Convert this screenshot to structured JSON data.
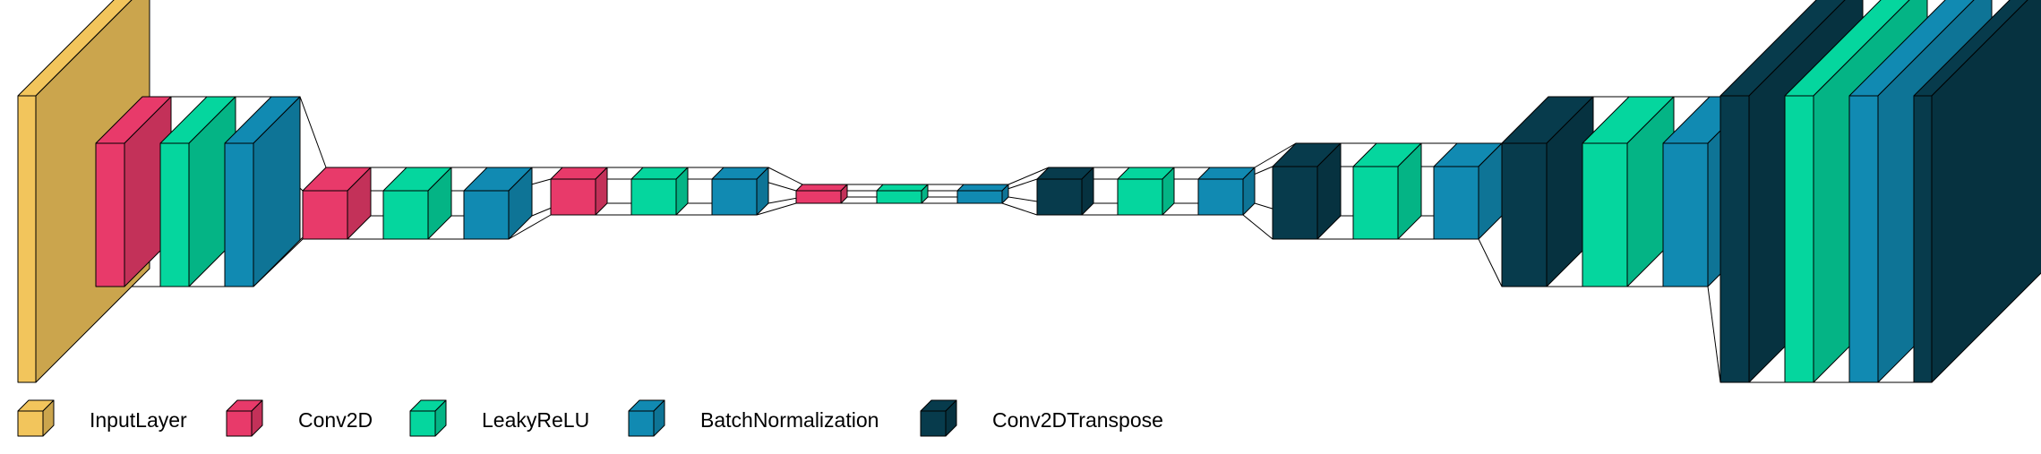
{
  "legend": [
    {
      "label": "InputLayer",
      "type": "input",
      "color": "#F2C55C"
    },
    {
      "label": "Conv2D",
      "type": "conv",
      "color": "#E83A6A"
    },
    {
      "label": "LeakyReLU",
      "type": "relu",
      "color": "#05D69E"
    },
    {
      "label": "BatchNormalization",
      "type": "bn",
      "color": "#118AB2"
    },
    {
      "label": "Conv2DTranspose",
      "type": "deconv",
      "color": "#073B4C"
    }
  ],
  "layers": [
    {
      "type": "input"
    },
    {
      "type": "conv"
    },
    {
      "type": "relu"
    },
    {
      "type": "bn"
    },
    {
      "type": "conv"
    },
    {
      "type": "relu"
    },
    {
      "type": "bn"
    },
    {
      "type": "conv"
    },
    {
      "type": "relu"
    },
    {
      "type": "bn"
    },
    {
      "type": "conv"
    },
    {
      "type": "relu"
    },
    {
      "type": "bn"
    },
    {
      "type": "deconv"
    },
    {
      "type": "relu"
    },
    {
      "type": "bn"
    },
    {
      "type": "deconv"
    },
    {
      "type": "relu"
    },
    {
      "type": "bn"
    },
    {
      "type": "deconv"
    },
    {
      "type": "relu"
    },
    {
      "type": "bn"
    },
    {
      "type": "deconv"
    },
    {
      "type": "relu"
    },
    {
      "type": "bn"
    },
    {
      "type": "deconv"
    }
  ]
}
